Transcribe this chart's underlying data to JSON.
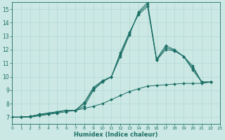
{
  "xlabel": "Humidex (Indice chaleur)",
  "xlim": [
    0,
    23
  ],
  "ylim": [
    6.5,
    15.5
  ],
  "xticks": [
    0,
    1,
    2,
    3,
    4,
    5,
    6,
    7,
    8,
    9,
    10,
    11,
    12,
    13,
    14,
    15,
    16,
    17,
    18,
    19,
    20,
    21,
    22,
    23
  ],
  "yticks": [
    7,
    8,
    9,
    10,
    11,
    12,
    13,
    14,
    15
  ],
  "background_color": "#cce8e4",
  "grid_color": "#b0d8d4",
  "line_color": "#1a6e65",
  "series": [
    {
      "x": [
        0,
        1,
        2,
        3,
        4,
        5,
        6,
        7,
        8,
        9,
        10,
        11,
        12,
        13,
        14,
        15,
        16,
        17,
        18,
        19,
        20,
        21,
        22
      ],
      "y": [
        7.0,
        7.0,
        7.05,
        7.2,
        7.3,
        7.4,
        7.5,
        7.5,
        7.8,
        9.0,
        9.6,
        10.0,
        11.8,
        13.3,
        14.6,
        15.2,
        11.2,
        12.0,
        11.9,
        11.5,
        10.8,
        9.6,
        9.6
      ]
    },
    {
      "x": [
        0,
        1,
        2,
        3,
        4,
        5,
        6,
        7,
        8,
        9,
        10,
        11,
        12,
        13,
        14,
        15,
        16,
        17,
        18,
        19,
        20,
        21,
        22
      ],
      "y": [
        7.0,
        7.0,
        7.05,
        7.2,
        7.3,
        7.4,
        7.5,
        7.5,
        8.1,
        9.2,
        9.7,
        10.0,
        11.5,
        13.1,
        14.8,
        15.5,
        11.3,
        12.3,
        12.0,
        11.5,
        10.5,
        9.6,
        9.6
      ]
    },
    {
      "x": [
        0,
        1,
        2,
        3,
        4,
        5,
        6,
        7,
        8,
        9,
        10,
        11,
        12,
        13,
        14,
        15,
        16,
        17,
        18,
        19,
        20,
        21,
        22
      ],
      "y": [
        7.0,
        7.0,
        7.05,
        7.15,
        7.25,
        7.35,
        7.5,
        7.5,
        8.0,
        9.1,
        9.65,
        10.0,
        11.65,
        13.2,
        14.7,
        15.35,
        11.25,
        12.15,
        11.95,
        11.5,
        10.65,
        9.6,
        9.6
      ]
    },
    {
      "x": [
        0,
        1,
        2,
        3,
        4,
        5,
        6,
        7,
        8,
        9,
        10,
        11,
        12,
        13,
        14,
        15,
        16,
        17,
        18,
        19,
        20,
        21,
        22
      ],
      "y": [
        7.0,
        7.0,
        7.0,
        7.1,
        7.2,
        7.3,
        7.4,
        7.5,
        7.65,
        7.8,
        8.0,
        8.3,
        8.6,
        8.9,
        9.1,
        9.3,
        9.35,
        9.4,
        9.45,
        9.5,
        9.5,
        9.5,
        9.6
      ]
    }
  ]
}
